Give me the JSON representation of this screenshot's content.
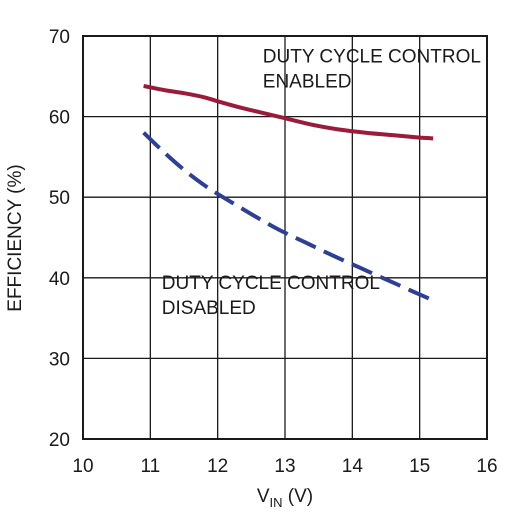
{
  "chart_data": {
    "type": "line",
    "xlabel": {
      "main": "V",
      "sub": "IN",
      "tail": " (V)"
    },
    "ylabel": "EFFICIENCY (%)",
    "xlim": [
      10,
      16
    ],
    "ylim": [
      20,
      70
    ],
    "xticks": [
      10,
      11,
      12,
      13,
      14,
      15,
      16
    ],
    "yticks": [
      20,
      30,
      40,
      50,
      60,
      70
    ],
    "grid": true,
    "series": [
      {
        "key": "enabled",
        "color": "#9b1b3a",
        "dash": "solid",
        "x": [
          10.9,
          11.2,
          11.5,
          11.8,
          12.0,
          12.3,
          12.6,
          13.0,
          13.4,
          13.8,
          14.2,
          14.6,
          15.0,
          15.2
        ],
        "y": [
          63.8,
          63.3,
          62.9,
          62.4,
          61.9,
          61.2,
          60.6,
          59.8,
          59.0,
          58.4,
          58.0,
          57.7,
          57.4,
          57.3
        ]
      },
      {
        "key": "disabled",
        "color": "#2e3f96",
        "dash": "dashed",
        "x": [
          10.9,
          11.2,
          11.5,
          11.8,
          12.1,
          12.5,
          12.9,
          13.3,
          13.7,
          14.1,
          14.5,
          14.9,
          15.2
        ],
        "y": [
          58.0,
          55.6,
          53.4,
          51.5,
          49.9,
          47.9,
          46.0,
          44.4,
          42.8,
          41.3,
          39.8,
          38.3,
          37.2
        ]
      }
    ],
    "annotations": [
      {
        "key": "enabled",
        "lines": [
          "DUTY CYCLE CONTROL",
          "ENABLED"
        ],
        "x": 12.67,
        "y": 66.7
      },
      {
        "key": "disabled",
        "lines": [
          "DUTY CYCLE CONTROL",
          "DISABLED"
        ],
        "x": 11.17,
        "y": 38.6
      }
    ]
  }
}
